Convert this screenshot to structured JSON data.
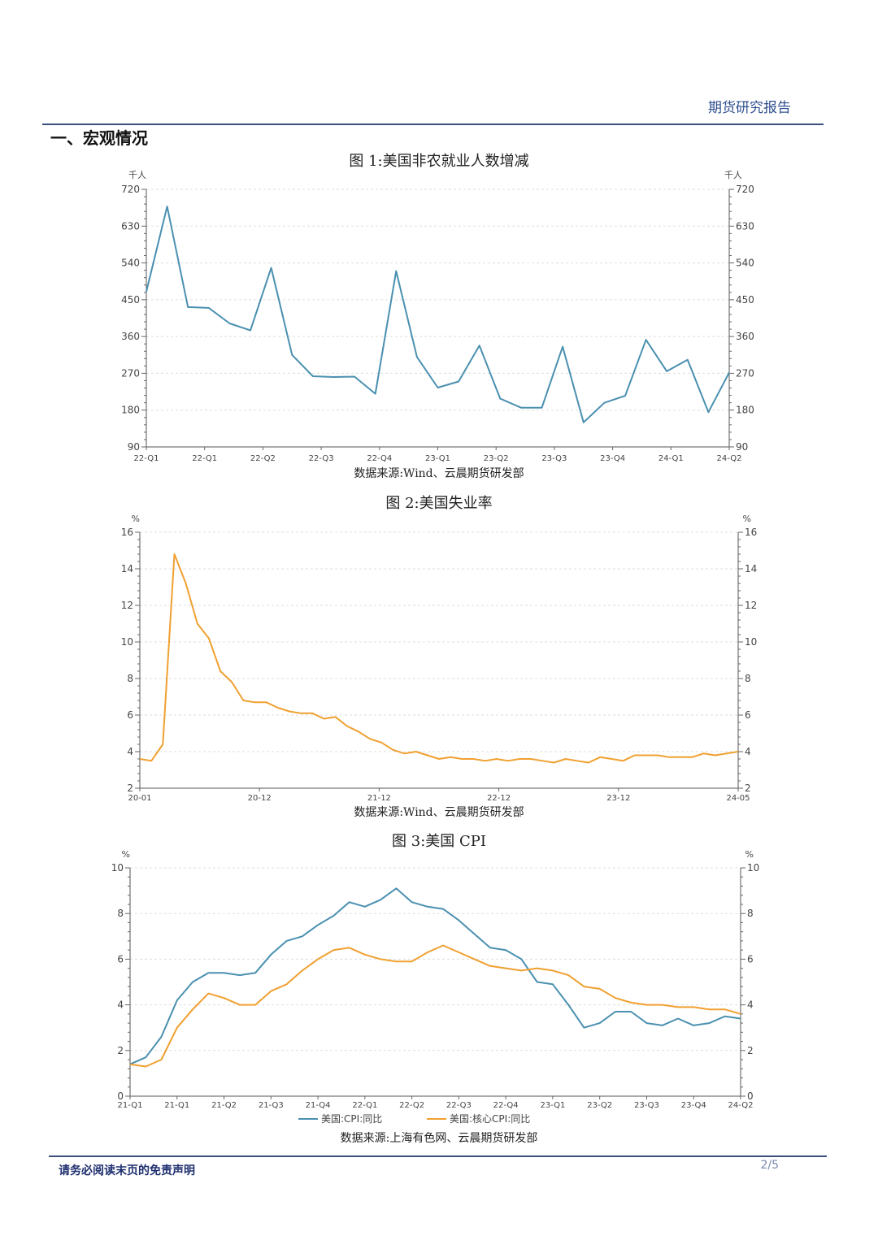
{
  "header": {
    "report_label": "期货研究报告"
  },
  "section": {
    "title": "一、宏观情况"
  },
  "figures": [
    {
      "title": "图 1:美国非农就业人数增减",
      "source": "数据来源:Wind、云晨期货研发部"
    },
    {
      "title": "图 2:美国失业率",
      "source": "数据来源:Wind、云晨期货研发部"
    },
    {
      "title": "图 3:美国 CPI",
      "source": "数据来源:上海有色网、云晨期货研发部"
    }
  ],
  "chart_data": [
    {
      "type": "line",
      "unit_left": "千人",
      "unit_right": "千人",
      "ylim": [
        90,
        720
      ],
      "yticks": [
        90,
        180,
        270,
        360,
        450,
        540,
        630,
        720
      ],
      "xticks": [
        "22-Q1",
        "22-Q1",
        "22-Q2",
        "22-Q3",
        "22-Q4",
        "23-Q1",
        "23-Q2",
        "23-Q3",
        "23-Q4",
        "24-Q1",
        "24-Q2"
      ],
      "grid": true,
      "colors": [
        "#4a90b0"
      ],
      "series": [
        {
          "values": [
            470,
            678,
            432,
            430,
            392,
            375,
            528,
            315,
            263,
            261,
            262,
            220,
            520,
            310,
            235,
            250,
            338,
            208,
            186,
            186,
            335,
            150,
            198,
            215,
            352,
            275,
            303,
            175,
            272
          ]
        }
      ]
    },
    {
      "type": "line",
      "unit_left": "%",
      "unit_right": "%",
      "ylim": [
        2,
        16
      ],
      "yticks": [
        2,
        4,
        6,
        8,
        10,
        12,
        14,
        16
      ],
      "xticks": [
        "20-01",
        "20-12",
        "21-12",
        "22-12",
        "23-12",
        "24-05"
      ],
      "grid": true,
      "colors": [
        "#f0a030"
      ],
      "series": [
        {
          "values": [
            3.6,
            3.5,
            4.4,
            14.8,
            13.2,
            11.0,
            10.2,
            8.4,
            7.8,
            6.8,
            6.7,
            6.7,
            6.4,
            6.2,
            6.1,
            6.1,
            5.8,
            5.9,
            5.4,
            5.1,
            4.7,
            4.5,
            4.1,
            3.9,
            4.0,
            3.8,
            3.6,
            3.7,
            3.6,
            3.6,
            3.5,
            3.6,
            3.5,
            3.6,
            3.6,
            3.5,
            3.4,
            3.6,
            3.5,
            3.4,
            3.7,
            3.6,
            3.5,
            3.8,
            3.8,
            3.8,
            3.7,
            3.7,
            3.7,
            3.9,
            3.8,
            3.9,
            4.0
          ]
        }
      ]
    },
    {
      "type": "line",
      "unit_left": "%",
      "unit_right": "%",
      "ylim": [
        0,
        10
      ],
      "yticks": [
        0,
        2,
        4,
        6,
        8,
        10
      ],
      "xticks": [
        "21-Q1",
        "21-Q1",
        "21-Q2",
        "21-Q3",
        "21-Q4",
        "22-Q1",
        "22-Q2",
        "22-Q3",
        "22-Q4",
        "23-Q1",
        "23-Q2",
        "23-Q3",
        "23-Q4",
        "24-Q2"
      ],
      "grid": true,
      "legend": "bottom",
      "colors": [
        "#4a90b0",
        "#f0a030"
      ],
      "series": [
        {
          "name": "美国:CPI:同比",
          "values": [
            1.4,
            1.7,
            2.6,
            4.2,
            5.0,
            5.4,
            5.4,
            5.3,
            5.4,
            6.2,
            6.8,
            7.0,
            7.5,
            7.9,
            8.5,
            8.3,
            8.6,
            9.1,
            8.5,
            8.3,
            8.2,
            7.7,
            7.1,
            6.5,
            6.4,
            6.0,
            5.0,
            4.9,
            4.0,
            3.0,
            3.2,
            3.7,
            3.7,
            3.2,
            3.1,
            3.4,
            3.1,
            3.2,
            3.5,
            3.4
          ]
        },
        {
          "name": "美国:核心CPI:同比",
          "values": [
            1.4,
            1.3,
            1.6,
            3.0,
            3.8,
            4.5,
            4.3,
            4.0,
            4.0,
            4.6,
            4.9,
            5.5,
            6.0,
            6.4,
            6.5,
            6.2,
            6.0,
            5.9,
            5.9,
            6.3,
            6.6,
            6.3,
            6.0,
            5.7,
            5.6,
            5.5,
            5.6,
            5.5,
            5.3,
            4.8,
            4.7,
            4.3,
            4.1,
            4.0,
            4.0,
            3.9,
            3.9,
            3.8,
            3.8,
            3.6
          ]
        }
      ]
    }
  ],
  "footer": {
    "disclaimer": "请务必阅读末页的免责声明",
    "page": "2/5"
  }
}
